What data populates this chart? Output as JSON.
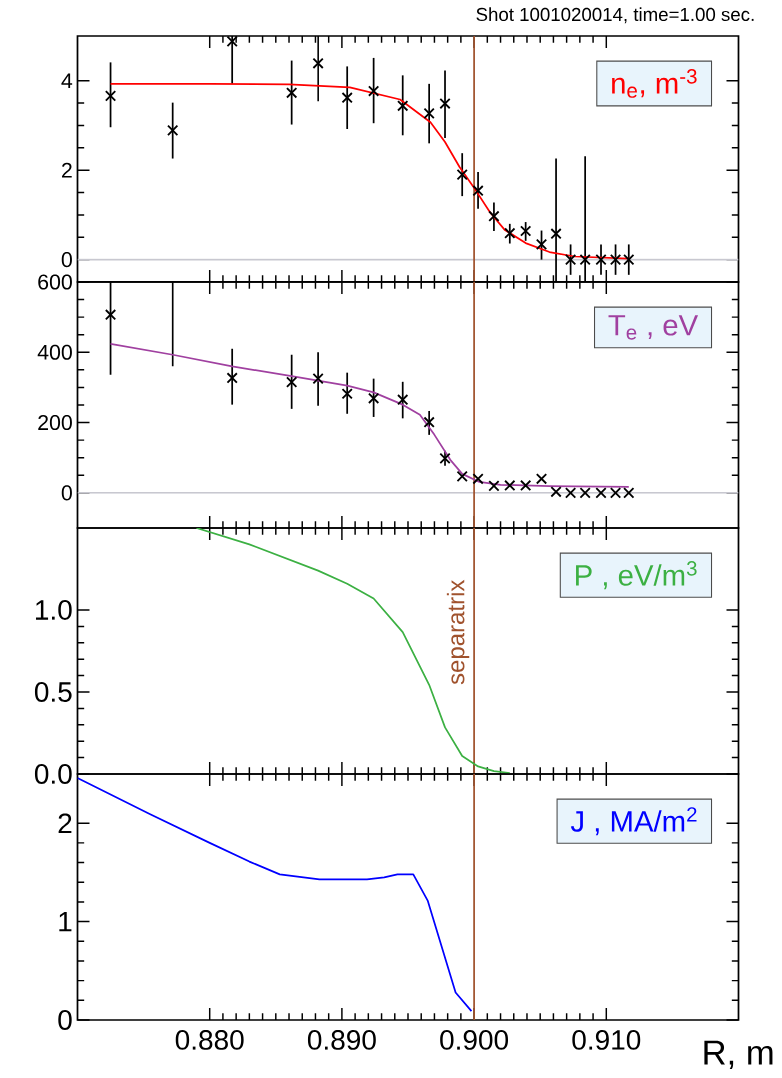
{
  "chart_data": [
    {
      "type": "line",
      "title": "Shot 1001020014, time=1.00 sec.",
      "xlim": [
        0.87,
        0.92
      ],
      "ylim": [
        -0.5,
        5
      ],
      "xticks": [
        0.88,
        0.89,
        0.9,
        0.91
      ],
      "yticks": [
        0,
        2,
        4
      ],
      "tick_labels": "y",
      "legend": "top right",
      "series": [
        {
          "type": "scatter",
          "marker": "cross",
          "color": "#000000",
          "x": [
            0.8725,
            0.8772,
            0.8817,
            0.8862,
            0.8882,
            0.8904,
            0.8924,
            0.8946,
            0.8966,
            0.8978,
            0.8991,
            0.9003,
            0.9015,
            0.9027,
            0.9039,
            0.9051,
            0.9062,
            0.9073,
            0.9084,
            0.9096,
            0.9107,
            0.9117
          ],
          "values": [
            3.66,
            2.89,
            4.88,
            3.73,
            4.39,
            3.62,
            3.77,
            3.44,
            3.27,
            3.49,
            1.9,
            1.54,
            0.97,
            0.59,
            0.64,
            0.34,
            0.58,
            0.0,
            0.0,
            0.0,
            0.0,
            0.0
          ],
          "errors": [
            [
              2.96,
              4.41
            ],
            [
              2.26,
              3.51
            ],
            [
              3.93,
              5.0
            ],
            [
              3.02,
              4.45
            ],
            [
              3.54,
              5.0
            ],
            [
              2.92,
              4.32
            ],
            [
              3.05,
              4.51
            ],
            [
              2.78,
              4.12
            ],
            [
              2.6,
              3.93
            ],
            [
              2.72,
              4.23
            ],
            [
              1.42,
              2.38
            ],
            [
              1.14,
              1.96
            ],
            [
              0.64,
              1.28
            ],
            [
              0.36,
              0.8
            ],
            [
              0.42,
              0.84
            ],
            [
              0.0,
              0.65
            ],
            [
              -0.5,
              2.26
            ],
            [
              -0.34,
              0.34
            ],
            [
              -0.5,
              2.31
            ],
            [
              -0.34,
              0.34
            ],
            [
              -0.34,
              0.34
            ],
            [
              -0.34,
              0.34
            ]
          ]
        },
        {
          "type": "line",
          "name": "n$_{e}$, m$^{-3}$",
          "color": "#ff0000",
          "x": [
            0.8725,
            0.88,
            0.886,
            0.8906,
            0.8944,
            0.8967,
            0.8978,
            0.8989,
            0.9001,
            0.9012,
            0.9023,
            0.9039,
            0.9057,
            0.9076,
            0.9117
          ],
          "values": [
            3.93,
            3.93,
            3.92,
            3.85,
            3.58,
            3.07,
            2.63,
            2.07,
            1.56,
            1.06,
            0.67,
            0.37,
            0.17,
            0.07,
            0.02
          ]
        }
      ],
      "ref_lines": [
        {
          "axis": "y",
          "value": 0,
          "color": "#c8c8d0"
        },
        {
          "axis": "x",
          "value": 0.9,
          "color": "#a0522d"
        }
      ]
    },
    {
      "type": "line",
      "xlim": [
        0.87,
        0.92
      ],
      "ylim": [
        -100,
        600
      ],
      "xticks": [
        0.88,
        0.89,
        0.9,
        0.91
      ],
      "yticks": [
        0,
        200,
        400,
        600
      ],
      "tick_labels": "y",
      "legend": "top right",
      "series": [
        {
          "type": "scatter",
          "marker": "cross",
          "color": "#000000",
          "x": [
            0.8725,
            0.8772,
            0.8817,
            0.8862,
            0.8882,
            0.8904,
            0.8924,
            0.8946,
            0.8966,
            0.8978,
            0.8991,
            0.9003,
            0.9015,
            0.9027,
            0.9039,
            0.9051,
            0.9062,
            0.9073,
            0.9084,
            0.9096,
            0.9107,
            0.9117
          ],
          "values": [
            507,
            null,
            327,
            315,
            325,
            282,
            269,
            265,
            201,
            98,
            47,
            40,
            20,
            21,
            21,
            40,
            3,
            0,
            0,
            0,
            0,
            0
          ],
          "errors": [
            [
              336,
              600
            ],
            null,
            [
              251,
              410
            ],
            [
              239,
              393
            ],
            [
              248,
              400
            ],
            [
              225,
              342
            ],
            [
              216,
              325
            ],
            [
              212,
              316
            ],
            [
              165,
              233
            ],
            [
              77,
              120
            ],
            null,
            null,
            null,
            null,
            null,
            null,
            null,
            null,
            null,
            null,
            null,
            null
          ]
        },
        {
          "type": "line",
          "color": "#000000",
          "x": [
            0.8772,
            0.8772
          ],
          "values": [
            360,
            600
          ]
        },
        {
          "type": "line",
          "name": "T$_{e}$ , eV",
          "color": "#a040a0",
          "x": [
            0.8725,
            0.8772,
            0.8817,
            0.8862,
            0.8904,
            0.8924,
            0.8946,
            0.8959,
            0.897,
            0.8982,
            0.8991,
            0.9004,
            0.902,
            0.9057,
            0.9117
          ],
          "values": [
            424,
            393,
            360,
            332,
            305,
            286,
            251,
            222,
            165,
            94,
            54,
            31,
            23,
            19,
            17
          ]
        }
      ],
      "ref_lines": [
        {
          "axis": "y",
          "value": 0,
          "color": "#c8c8d0"
        },
        {
          "axis": "x",
          "value": 0.9,
          "color": "#a0522d"
        }
      ]
    },
    {
      "type": "line",
      "xlim": [
        0.87,
        0.92
      ],
      "ylim": [
        0,
        1.5
      ],
      "xticks": [
        0.88,
        0.89,
        0.9,
        0.91
      ],
      "yticks": [
        {
          "value": 0,
          "label": "0.0"
        },
        {
          "value": 0.5,
          "label": "0.5"
        },
        {
          "value": 1.0,
          "label": "1.0"
        }
      ],
      "tick_labels": "y",
      "legend": "top right",
      "series": [
        {
          "name": "P , eV/m$^{3}$",
          "color": "#3cb043",
          "x": [
            0.879,
            0.883,
            0.8882,
            0.8904,
            0.8924,
            0.8946,
            0.8966,
            0.8978,
            0.8991,
            0.9003,
            0.9015,
            0.9027
          ],
          "values": [
            1.5,
            1.4,
            1.24,
            1.16,
            1.07,
            0.865,
            0.544,
            0.284,
            0.11,
            0.046,
            0.018,
            0.006
          ]
        }
      ],
      "ref_lines": [
        {
          "axis": "x",
          "value": 0.9,
          "color": "#a0522d",
          "label": "separatrix"
        }
      ]
    },
    {
      "type": "line",
      "xlabel": "R, m",
      "xlim": [
        0.87,
        0.92
      ],
      "ylim": [
        0,
        2.5
      ],
      "xticks": [
        {
          "value": 0.88,
          "label": "0.880"
        },
        {
          "value": 0.89,
          "label": "0.890"
        },
        {
          "value": 0.9,
          "label": "0.900"
        },
        {
          "value": 0.91,
          "label": "0.910"
        }
      ],
      "yticks": [
        0,
        1,
        2
      ],
      "legend": "top right",
      "series": [
        {
          "name": "J , MA/m$^{2}$",
          "color": "#0000ff",
          "x": [
            0.87,
            0.8755,
            0.88,
            0.883,
            0.8853,
            0.8883,
            0.8919,
            0.8932,
            0.8942,
            0.8954,
            0.8965,
            0.8986,
            0.8998
          ],
          "values": [
            2.46,
            2.09,
            1.8,
            1.61,
            1.48,
            1.43,
            1.43,
            1.45,
            1.48,
            1.48,
            1.21,
            0.28,
            0.09
          ]
        }
      ],
      "ref_lines": [
        {
          "axis": "x",
          "value": 0.9,
          "color": "#a0522d"
        }
      ]
    }
  ]
}
